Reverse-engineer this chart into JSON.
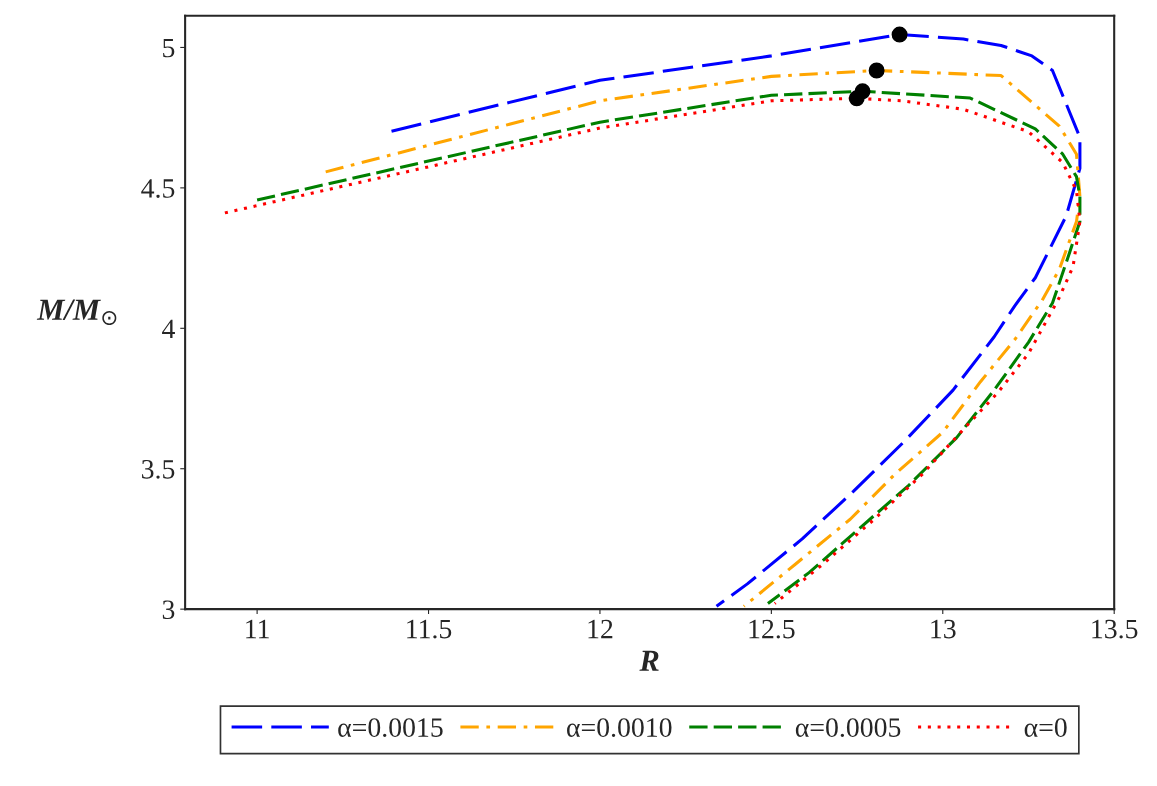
{
  "chart_data": {
    "type": "line",
    "xlabel": "R",
    "ylabel": "M/M$_{⊙}$",
    "xlim": [
      10.79,
      13.5
    ],
    "ylim": [
      3,
      5.113
    ],
    "xticks": [
      11,
      11.5,
      12,
      12.5,
      13,
      13.5
    ],
    "yticks": [
      3,
      3.5,
      4,
      4.5,
      5
    ],
    "legend": "bottom",
    "grid": false,
    "series": [
      {
        "name": "α=0.0015",
        "color": "#0000ff",
        "line_style": "longdash",
        "x": [
          11.392,
          12.0,
          12.5,
          12.874,
          13.06,
          13.17,
          13.26,
          13.32,
          13.4,
          13.4,
          13.36,
          13.27,
          13.21,
          13.15,
          13.03,
          12.89,
          12.74,
          12.59,
          12.43,
          12.34
        ],
        "values": [
          4.702,
          4.883,
          4.97,
          5.046,
          5.03,
          5.007,
          4.97,
          4.918,
          4.68,
          4.57,
          4.4,
          4.18,
          4.08,
          3.97,
          3.78,
          3.6,
          3.42,
          3.25,
          3.09,
          3.01
        ]
      },
      {
        "name": "α=0.0010",
        "color": "#ffa500",
        "line_style": "dashdot",
        "x": [
          11.2,
          12.0,
          12.5,
          12.807,
          13.17,
          13.34,
          13.39,
          13.4,
          13.39,
          13.34,
          13.29,
          13.21,
          13.11,
          13.0,
          12.86,
          12.73,
          12.57,
          12.42
        ],
        "values": [
          4.557,
          4.81,
          4.897,
          4.918,
          4.9,
          4.72,
          4.62,
          4.47,
          4.38,
          4.21,
          4.1,
          3.96,
          3.81,
          3.63,
          3.48,
          3.32,
          3.16,
          3.01
        ]
      },
      {
        "name": "α=0.0005",
        "color": "#008000",
        "line_style": "dashed",
        "x": [
          11.0,
          12.0,
          12.5,
          12.766,
          13.08,
          13.27,
          13.35,
          13.39,
          13.4,
          13.4,
          13.37,
          13.32,
          13.25,
          13.15,
          13.04,
          12.9,
          12.75,
          12.61,
          12.49
        ],
        "values": [
          4.457,
          4.734,
          4.83,
          4.844,
          4.82,
          4.71,
          4.62,
          4.54,
          4.47,
          4.38,
          4.27,
          4.09,
          3.95,
          3.78,
          3.61,
          3.44,
          3.28,
          3.13,
          3.02
        ]
      },
      {
        "name": "α=0",
        "color": "#ff0000",
        "line_style": "dotted",
        "x": [
          10.906,
          12.0,
          12.5,
          12.749,
          12.88,
          13.06,
          13.25,
          13.35,
          13.39,
          13.4,
          13.38,
          13.34,
          13.25,
          13.16,
          13.06,
          12.94,
          12.8,
          12.65,
          12.51
        ],
        "values": [
          4.411,
          4.713,
          4.81,
          4.819,
          4.81,
          4.78,
          4.7,
          4.59,
          4.49,
          4.38,
          4.22,
          4.11,
          3.91,
          3.77,
          3.64,
          3.48,
          3.32,
          3.16,
          3.02
        ]
      },
      {
        "type": "scatter",
        "color": "#000000",
        "marker": "circle",
        "x": [
          12.874,
          12.807,
          12.766,
          12.749
        ],
        "values": [
          5.046,
          4.918,
          4.844,
          4.819
        ]
      }
    ]
  }
}
